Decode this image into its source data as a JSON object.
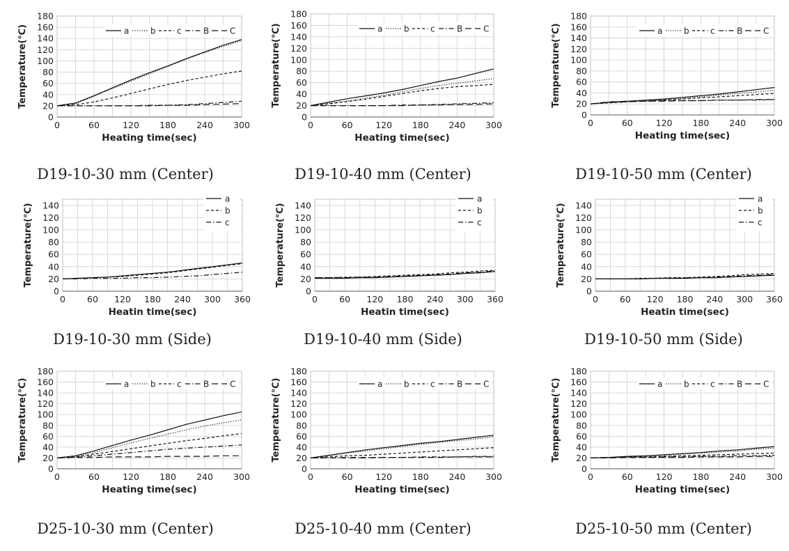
{
  "chart_data": [
    {
      "type": "line",
      "caption": "D19-10-30 mm (Center)",
      "xlabel": "Heating time(sec)",
      "ylabel": "Temperature(℃)",
      "xlim": [
        0,
        300
      ],
      "ylim": [
        0,
        180
      ],
      "xticks": [
        0,
        60,
        120,
        180,
        240,
        300
      ],
      "yticks": [
        0,
        20,
        40,
        60,
        80,
        100,
        120,
        140,
        160,
        180
      ],
      "grid": true,
      "legend_position": "top-right",
      "x": [
        0,
        30,
        60,
        90,
        120,
        150,
        180,
        210,
        240,
        270,
        300
      ],
      "series": [
        {
          "name": "a",
          "style": "solid",
          "values": [
            20,
            25,
            38,
            52,
            66,
            79,
            91,
            104,
            116,
            128,
            138
          ]
        },
        {
          "name": "b",
          "style": "dotted",
          "values": [
            20,
            24,
            37,
            51,
            64,
            77,
            90,
            103,
            115,
            126,
            136
          ]
        },
        {
          "name": "c",
          "style": "dashed",
          "values": [
            20,
            22,
            27,
            34,
            42,
            50,
            58,
            65,
            71,
            77,
            82
          ]
        },
        {
          "name": "B",
          "style": "dashdot",
          "values": [
            20,
            20,
            20,
            20,
            20,
            21,
            21,
            22,
            24,
            26,
            28
          ]
        },
        {
          "name": "C",
          "style": "longdash",
          "values": [
            20,
            20,
            20,
            20,
            20,
            20,
            21,
            21,
            22,
            23,
            24
          ]
        }
      ]
    },
    {
      "type": "line",
      "caption": "D19-10-40 mm (Center)",
      "xlabel": "Heating time(sec)",
      "ylabel": "Temperature(℃)",
      "xlim": [
        0,
        300
      ],
      "ylim": [
        0,
        180
      ],
      "xticks": [
        0,
        60,
        120,
        180,
        240,
        300
      ],
      "yticks": [
        0,
        20,
        40,
        60,
        80,
        100,
        120,
        140,
        160,
        180
      ],
      "grid": true,
      "legend_position": "top-right",
      "x": [
        0,
        30,
        60,
        90,
        120,
        150,
        180,
        210,
        240,
        270,
        300
      ],
      "series": [
        {
          "name": "a",
          "style": "solid",
          "values": [
            20,
            26,
            32,
            37,
            42,
            48,
            55,
            62,
            68,
            76,
            84
          ]
        },
        {
          "name": "b",
          "style": "dotted",
          "values": [
            20,
            24,
            28,
            33,
            38,
            44,
            50,
            55,
            59,
            63,
            67
          ]
        },
        {
          "name": "c",
          "style": "dashed",
          "values": [
            20,
            23,
            27,
            31,
            36,
            41,
            46,
            50,
            53,
            55,
            57
          ]
        },
        {
          "name": "B",
          "style": "dashdot",
          "values": [
            20,
            20,
            20,
            20,
            20,
            21,
            21,
            22,
            23,
            24,
            25
          ]
        },
        {
          "name": "C",
          "style": "longdash",
          "values": [
            20,
            20,
            20,
            20,
            20,
            20,
            21,
            21,
            22,
            22,
            23
          ]
        }
      ]
    },
    {
      "type": "line",
      "caption": "D19-10-50 mm (Center)",
      "xlabel": "Heating time(sec)",
      "ylabel": "Temperature(℃)",
      "xlim": [
        0,
        300
      ],
      "ylim": [
        0,
        180
      ],
      "xticks": [
        0,
        60,
        120,
        180,
        240,
        300
      ],
      "yticks": [
        0,
        20,
        40,
        60,
        80,
        100,
        120,
        140,
        160,
        180
      ],
      "grid": true,
      "legend_position": "top-right",
      "x": [
        0,
        30,
        60,
        90,
        120,
        150,
        180,
        210,
        240,
        270,
        300
      ],
      "series": [
        {
          "name": "a",
          "style": "solid",
          "values": [
            20,
            23,
            25,
            27,
            29,
            32,
            35,
            38,
            42,
            46,
            50
          ]
        },
        {
          "name": "b",
          "style": "dotted",
          "values": [
            20,
            22,
            24,
            26,
            28,
            30,
            33,
            36,
            39,
            42,
            45
          ]
        },
        {
          "name": "c",
          "style": "dashed",
          "values": [
            20,
            22,
            24,
            25,
            27,
            29,
            31,
            33,
            35,
            37,
            39
          ]
        },
        {
          "name": "B",
          "style": "dashdot",
          "values": [
            20,
            24,
            25,
            25,
            26,
            26,
            26,
            27,
            27,
            27,
            28
          ]
        },
        {
          "name": "C",
          "style": "longdash",
          "values": [
            20,
            23,
            24,
            25,
            25,
            26,
            26,
            27,
            27,
            28,
            28
          ]
        }
      ]
    },
    {
      "type": "line",
      "caption": "D19-10-30 mm (Side)",
      "xlabel": "Heatin time(sec)",
      "ylabel": "Temperature(℃)",
      "xlim": [
        0,
        360
      ],
      "ylim": [
        0,
        150
      ],
      "xticks": [
        0,
        60,
        120,
        180,
        240,
        300,
        360
      ],
      "yticks": [
        0,
        20,
        40,
        60,
        80,
        100,
        120,
        140
      ],
      "grid": true,
      "legend_position": "top-right",
      "x": [
        0,
        30,
        60,
        90,
        120,
        150,
        180,
        210,
        240,
        270,
        300,
        330,
        360
      ],
      "series": [
        {
          "name": "a",
          "style": "solid",
          "values": [
            20,
            21,
            22,
            23,
            25,
            27,
            29,
            31,
            34,
            37,
            40,
            43,
            46
          ]
        },
        {
          "name": "b",
          "style": "dashed",
          "values": [
            20,
            21,
            22,
            23,
            24,
            26,
            28,
            30,
            33,
            36,
            39,
            42,
            45
          ]
        },
        {
          "name": "c",
          "style": "dashdot",
          "values": [
            20,
            20,
            21,
            21,
            21,
            22,
            22,
            23,
            24,
            25,
            27,
            29,
            31
          ]
        }
      ]
    },
    {
      "type": "line",
      "caption": "D19-10-40 mm (Side)",
      "xlabel": "Heatin time(sec)",
      "ylabel": "Temperature(℃)",
      "xlim": [
        0,
        360
      ],
      "ylim": [
        0,
        150
      ],
      "xticks": [
        0,
        60,
        120,
        180,
        240,
        300,
        360
      ],
      "yticks": [
        0,
        20,
        40,
        60,
        80,
        100,
        120,
        140
      ],
      "grid": true,
      "legend_position": "top-right",
      "x": [
        0,
        30,
        60,
        90,
        120,
        150,
        180,
        210,
        240,
        270,
        300,
        330,
        360
      ],
      "series": [
        {
          "name": "a",
          "style": "solid",
          "values": [
            21,
            21,
            21,
            22,
            22,
            23,
            24,
            25,
            26,
            27,
            29,
            30,
            32
          ]
        },
        {
          "name": "b",
          "style": "dashed",
          "values": [
            22,
            22,
            23,
            23,
            24,
            25,
            26,
            27,
            28,
            30,
            31,
            33,
            34
          ]
        },
        {
          "name": "c",
          "style": "dashdot",
          "values": [
            22,
            22,
            22,
            23,
            23,
            24,
            25,
            26,
            27,
            28,
            30,
            31,
            33
          ]
        }
      ]
    },
    {
      "type": "line",
      "caption": "D19-10-50 mm (Side)",
      "xlabel": "Heatin time(sec)",
      "ylabel": "Temperature(℃)",
      "xlim": [
        0,
        360
      ],
      "ylim": [
        0,
        150
      ],
      "xticks": [
        0,
        60,
        120,
        180,
        240,
        300,
        360
      ],
      "yticks": [
        0,
        20,
        40,
        60,
        80,
        100,
        120,
        140
      ],
      "grid": true,
      "legend_position": "top-right",
      "x": [
        0,
        30,
        60,
        90,
        120,
        150,
        180,
        210,
        240,
        270,
        300,
        330,
        360
      ],
      "series": [
        {
          "name": "a",
          "style": "solid",
          "values": [
            20,
            20,
            20,
            20,
            21,
            21,
            21,
            22,
            22,
            23,
            24,
            25,
            26
          ]
        },
        {
          "name": "b",
          "style": "dashed",
          "values": [
            20,
            20,
            20,
            21,
            21,
            22,
            22,
            23,
            24,
            25,
            27,
            28,
            29
          ]
        },
        {
          "name": "c",
          "style": "dashdot",
          "values": [
            20,
            20,
            20,
            20,
            21,
            21,
            22,
            22,
            23,
            24,
            25,
            26,
            27
          ]
        }
      ]
    },
    {
      "type": "line",
      "caption": "D25-10-30 mm (Center)",
      "xlabel": "Heating time(sec)",
      "ylabel": "Temperature(℃)",
      "xlim": [
        0,
        300
      ],
      "ylim": [
        0,
        180
      ],
      "xticks": [
        0,
        60,
        120,
        180,
        240,
        300
      ],
      "yticks": [
        0,
        20,
        40,
        60,
        80,
        100,
        120,
        140,
        160,
        180
      ],
      "grid": true,
      "legend_position": "top-right",
      "x": [
        0,
        30,
        60,
        90,
        120,
        150,
        180,
        210,
        240,
        270,
        300
      ],
      "series": [
        {
          "name": "a",
          "style": "solid",
          "values": [
            20,
            24,
            33,
            43,
            53,
            62,
            72,
            82,
            90,
            98,
            105
          ]
        },
        {
          "name": "b",
          "style": "dotted",
          "values": [
            20,
            23,
            30,
            39,
            48,
            56,
            64,
            72,
            79,
            85,
            90
          ]
        },
        {
          "name": "c",
          "style": "dashed",
          "values": [
            20,
            22,
            27,
            32,
            37,
            42,
            47,
            52,
            56,
            61,
            65
          ]
        },
        {
          "name": "B",
          "style": "dashdot",
          "values": [
            20,
            21,
            24,
            27,
            30,
            33,
            36,
            38,
            40,
            42,
            44
          ]
        },
        {
          "name": "C",
          "style": "longdash",
          "values": [
            20,
            21,
            21,
            22,
            22,
            22,
            23,
            23,
            23,
            24,
            24
          ]
        }
      ]
    },
    {
      "type": "line",
      "caption": "D25-10-40 mm (Center)",
      "xlabel": "Heating time(sec)",
      "ylabel": "Temperature(℃)",
      "xlim": [
        0,
        300
      ],
      "ylim": [
        0,
        180
      ],
      "xticks": [
        0,
        60,
        120,
        180,
        240,
        300
      ],
      "yticks": [
        0,
        20,
        40,
        60,
        80,
        100,
        120,
        140,
        160,
        180
      ],
      "grid": true,
      "legend_position": "top-right",
      "x": [
        0,
        30,
        60,
        90,
        120,
        150,
        180,
        210,
        240,
        270,
        300
      ],
      "series": [
        {
          "name": "a",
          "style": "solid",
          "values": [
            20,
            25,
            30,
            35,
            39,
            43,
            47,
            50,
            54,
            58,
            62
          ]
        },
        {
          "name": "b",
          "style": "dotted",
          "values": [
            20,
            24,
            29,
            33,
            37,
            41,
            45,
            49,
            52,
            55,
            59
          ]
        },
        {
          "name": "c",
          "style": "dashed",
          "values": [
            20,
            22,
            24,
            25,
            27,
            29,
            31,
            33,
            35,
            37,
            39
          ]
        },
        {
          "name": "B",
          "style": "dashdot",
          "values": [
            20,
            20,
            21,
            21,
            21,
            21,
            22,
            22,
            22,
            23,
            23
          ]
        },
        {
          "name": "C",
          "style": "longdash",
          "values": [
            20,
            20,
            20,
            20,
            21,
            21,
            21,
            21,
            22,
            22,
            22
          ]
        }
      ]
    },
    {
      "type": "line",
      "caption": "D25-10-50 mm (Center)",
      "xlabel": "Heating time(sec)",
      "ylabel": "Temperature(℃)",
      "xlim": [
        0,
        300
      ],
      "ylim": [
        0,
        180
      ],
      "xticks": [
        0,
        60,
        120,
        180,
        240,
        300
      ],
      "yticks": [
        0,
        20,
        40,
        60,
        80,
        100,
        120,
        140,
        160,
        180
      ],
      "grid": true,
      "legend_position": "top-right",
      "x": [
        0,
        30,
        60,
        90,
        120,
        150,
        180,
        210,
        240,
        270,
        300
      ],
      "series": [
        {
          "name": "a",
          "style": "solid",
          "values": [
            20,
            21,
            23,
            24,
            26,
            28,
            30,
            33,
            35,
            38,
            41
          ]
        },
        {
          "name": "b",
          "style": "dotted",
          "values": [
            20,
            21,
            22,
            23,
            25,
            27,
            29,
            31,
            33,
            36,
            38
          ]
        },
        {
          "name": "c",
          "style": "dashed",
          "values": [
            20,
            21,
            22,
            22,
            23,
            24,
            25,
            26,
            27,
            28,
            29
          ]
        },
        {
          "name": "B",
          "style": "dashdot",
          "values": [
            20,
            21,
            21,
            21,
            22,
            22,
            23,
            23,
            24,
            24,
            25
          ]
        },
        {
          "name": "C",
          "style": "longdash",
          "values": [
            20,
            20,
            21,
            21,
            21,
            21,
            22,
            22,
            22,
            23,
            23
          ]
        }
      ]
    }
  ]
}
